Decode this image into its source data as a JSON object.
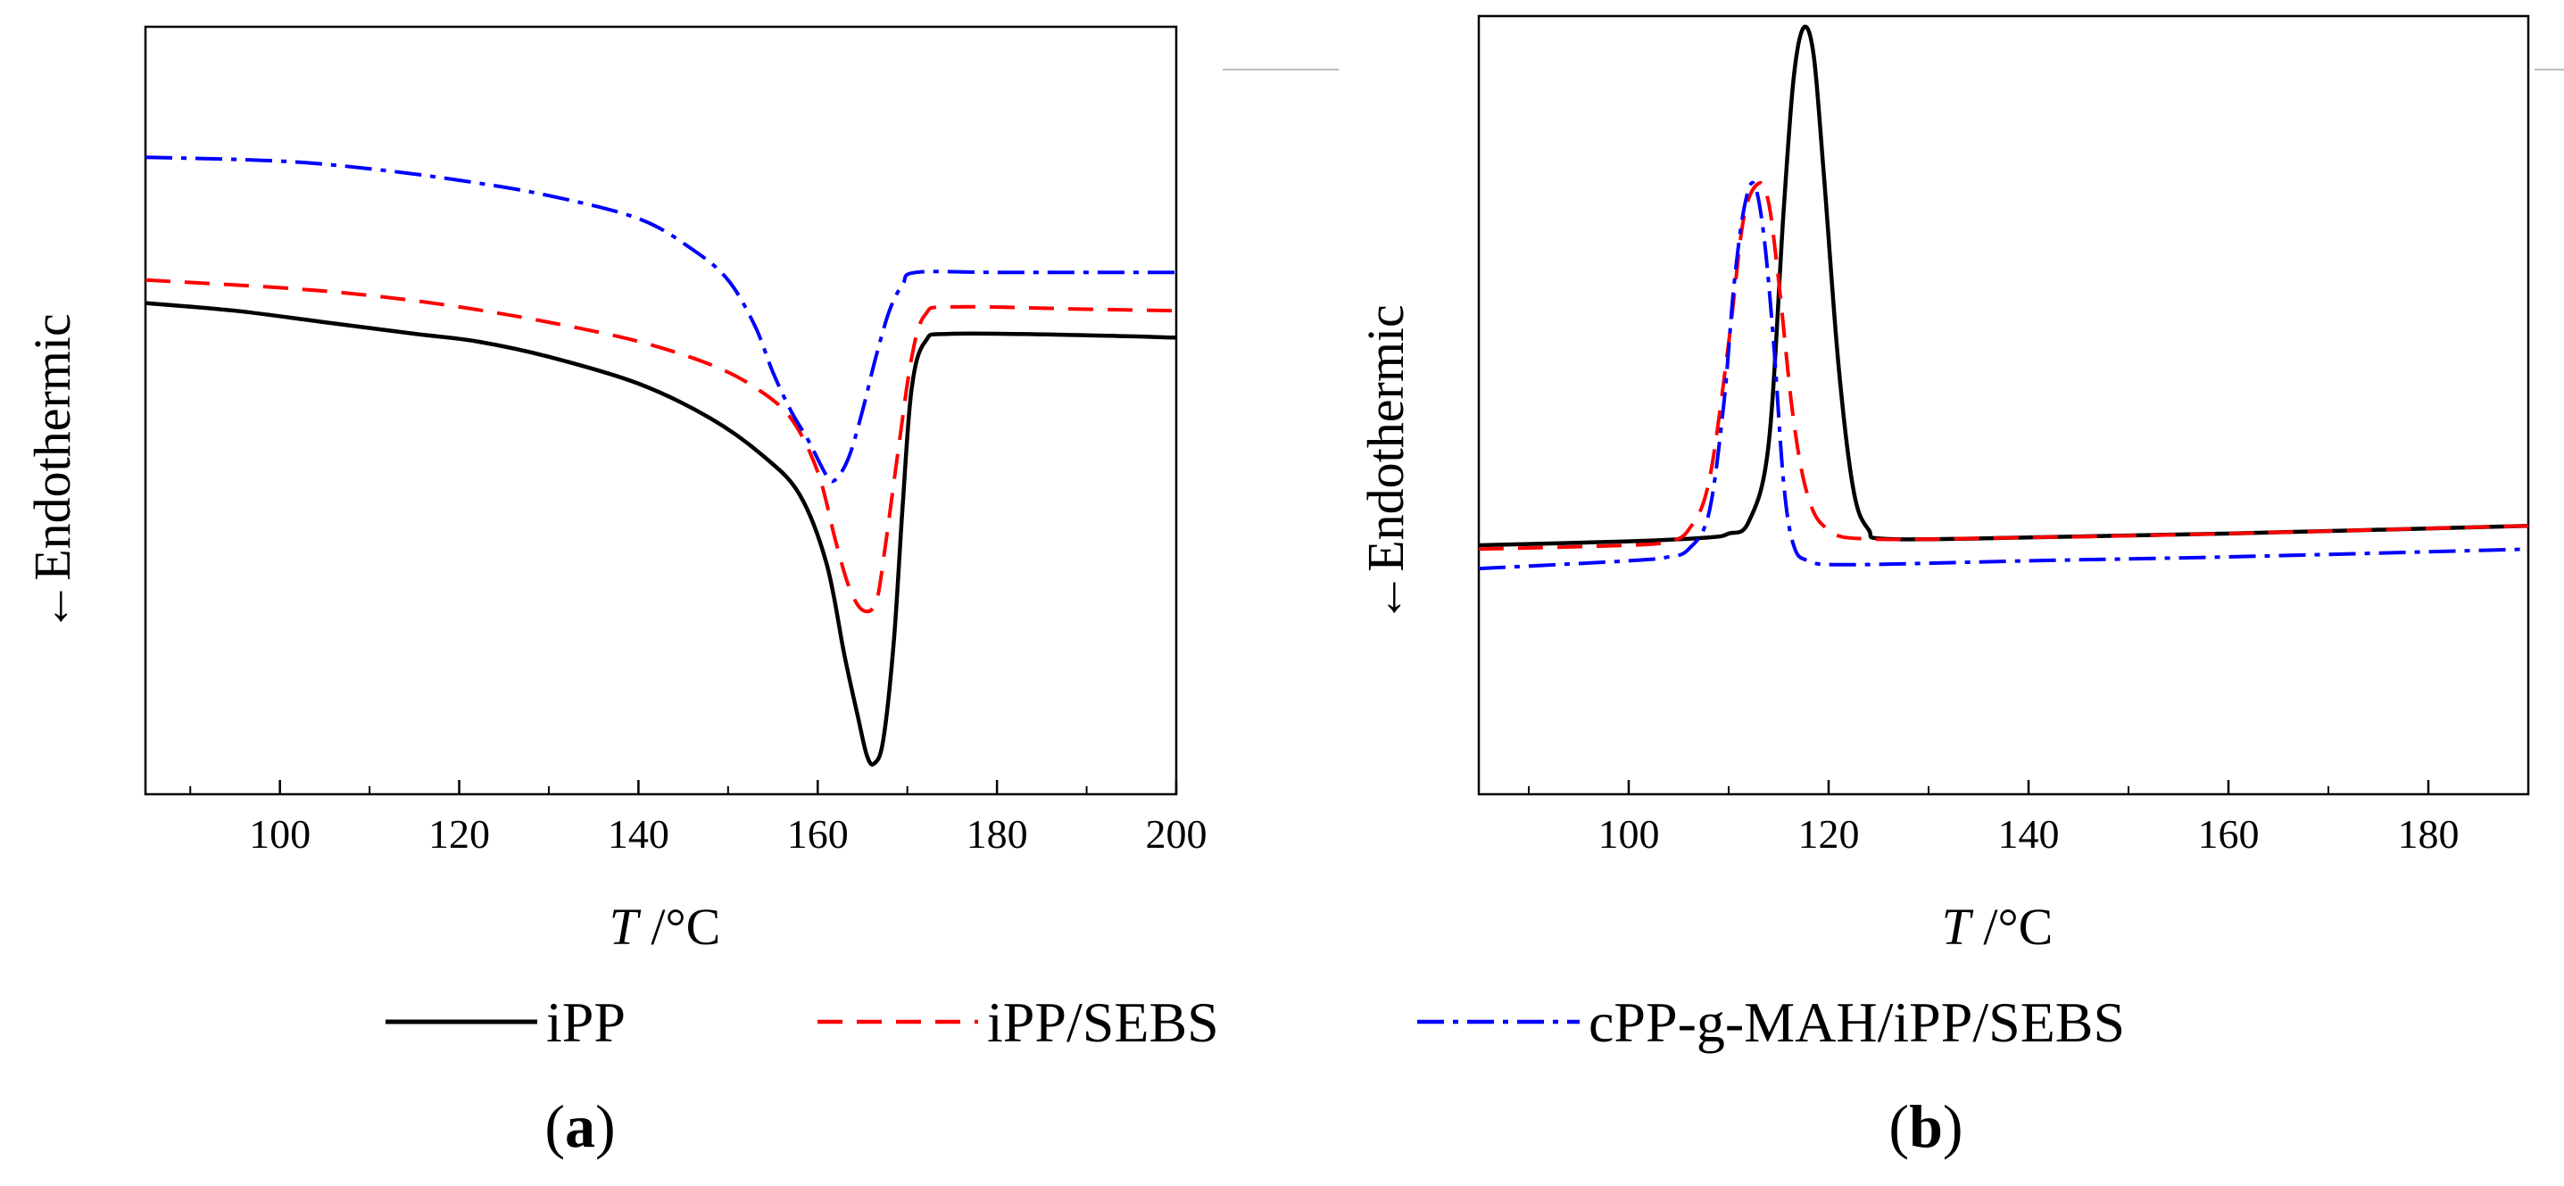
{
  "legend": {
    "entries": [
      {
        "label": "iPP",
        "color": "#000000",
        "dash": "solid"
      },
      {
        "label": "iPP/SEBS",
        "color": "#ff0000",
        "dash": "dashed"
      },
      {
        "label": "cPP-g-MAH/iPP/SEBS",
        "color": "#0000ff",
        "dash": "dash-dot"
      }
    ]
  },
  "chart_data": [
    {
      "panel": "a",
      "panel_label": {
        "open": "(",
        "letter": "a",
        "close": ")"
      },
      "type": "line",
      "xlabel": {
        "var": "T",
        "unit": " /°C"
      },
      "ylabel": "←Endothermic",
      "xlim": [
        85,
        200
      ],
      "ylim": [
        0,
        1
      ],
      "xticks": [
        100,
        120,
        140,
        160,
        180,
        200
      ],
      "y_tick_labels": false,
      "series": [
        {
          "name": "iPP",
          "color": "#000000",
          "dash": "solid",
          "points": [
            [
              85,
              0.64
            ],
            [
              95,
              0.63
            ],
            [
              105,
              0.615
            ],
            [
              115,
              0.6
            ],
            [
              122,
              0.59
            ],
            [
              130,
              0.57
            ],
            [
              140,
              0.535
            ],
            [
              148,
              0.49
            ],
            [
              154,
              0.44
            ],
            [
              158,
              0.39
            ],
            [
              161,
              0.3
            ],
            [
              163,
              0.18
            ],
            [
              164.5,
              0.1
            ],
            [
              165.5,
              0.05
            ],
            [
              166.3,
              0.04
            ],
            [
              167.3,
              0.07
            ],
            [
              168.5,
              0.2
            ],
            [
              169.5,
              0.38
            ],
            [
              170.5,
              0.53
            ],
            [
              172,
              0.59
            ],
            [
              175,
              0.6
            ],
            [
              190,
              0.598
            ],
            [
              200,
              0.595
            ]
          ]
        },
        {
          "name": "iPP/SEBS",
          "color": "#ff0000",
          "dash": "dashed",
          "points": [
            [
              85,
              0.67
            ],
            [
              100,
              0.66
            ],
            [
              110,
              0.65
            ],
            [
              120,
              0.635
            ],
            [
              130,
              0.615
            ],
            [
              140,
              0.59
            ],
            [
              148,
              0.56
            ],
            [
              153,
              0.53
            ],
            [
              157,
              0.49
            ],
            [
              160,
              0.42
            ],
            [
              162,
              0.33
            ],
            [
              163.5,
              0.27
            ],
            [
              165,
              0.24
            ],
            [
              166.5,
              0.25
            ],
            [
              167.5,
              0.32
            ],
            [
              169,
              0.45
            ],
            [
              170.5,
              0.57
            ],
            [
              172,
              0.625
            ],
            [
              175,
              0.635
            ],
            [
              190,
              0.632
            ],
            [
              200,
              0.63
            ]
          ]
        },
        {
          "name": "cPP-g-MAH/iPP/SEBS",
          "color": "#0000ff",
          "dash": "dash-dot",
          "points": [
            [
              85,
              0.83
            ],
            [
              100,
              0.825
            ],
            [
              110,
              0.815
            ],
            [
              120,
              0.8
            ],
            [
              130,
              0.78
            ],
            [
              140,
              0.75
            ],
            [
              146,
              0.71
            ],
            [
              150,
              0.67
            ],
            [
              153,
              0.61
            ],
            [
              155,
              0.55
            ],
            [
              157,
              0.5
            ],
            [
              159,
              0.46
            ],
            [
              161,
              0.415
            ],
            [
              162,
              0.41
            ],
            [
              163.5,
              0.44
            ],
            [
              165,
              0.5
            ],
            [
              166.5,
              0.57
            ],
            [
              168,
              0.63
            ],
            [
              169.5,
              0.665
            ],
            [
              171,
              0.68
            ],
            [
              180,
              0.68
            ],
            [
              200,
              0.68
            ]
          ]
        }
      ]
    },
    {
      "panel": "b",
      "panel_label": {
        "open": "(",
        "letter": "b",
        "close": ")"
      },
      "type": "line",
      "xlabel": {
        "var": "T",
        "unit": " /°C"
      },
      "ylabel": "←Endothermic",
      "xlim": [
        85,
        190
      ],
      "ylim": [
        0,
        1
      ],
      "xticks": [
        100,
        120,
        140,
        160,
        180
      ],
      "y_tick_labels": false,
      "series": [
        {
          "name": "iPP",
          "color": "#000000",
          "dash": "solid",
          "points": [
            [
              85,
              0.32
            ],
            [
              100,
              0.325
            ],
            [
              108,
              0.33
            ],
            [
              110,
              0.335
            ],
            [
              112,
              0.35
            ],
            [
              114,
              0.45
            ],
            [
              115.5,
              0.75
            ],
            [
              116.5,
              0.92
            ],
            [
              117.5,
              0.985
            ],
            [
              118.5,
              0.95
            ],
            [
              119.5,
              0.8
            ],
            [
              121,
              0.55
            ],
            [
              122.5,
              0.39
            ],
            [
              124,
              0.34
            ],
            [
              126,
              0.328
            ],
            [
              140,
              0.33
            ],
            [
              160,
              0.335
            ],
            [
              190,
              0.345
            ]
          ]
        },
        {
          "name": "iPP/SEBS",
          "color": "#ff0000",
          "dash": "dashed",
          "points": [
            [
              85,
              0.315
            ],
            [
              100,
              0.32
            ],
            [
              104,
              0.325
            ],
            [
              106,
              0.34
            ],
            [
              108,
              0.4
            ],
            [
              110,
              0.58
            ],
            [
              111.5,
              0.74
            ],
            [
              113,
              0.785
            ],
            [
              114,
              0.76
            ],
            [
              115,
              0.66
            ],
            [
              116.5,
              0.48
            ],
            [
              118,
              0.38
            ],
            [
              120,
              0.34
            ],
            [
              124,
              0.328
            ],
            [
              140,
              0.33
            ],
            [
              160,
              0.335
            ],
            [
              190,
              0.345
            ]
          ]
        },
        {
          "name": "cPP-g-MAH/iPP/SEBS",
          "color": "#0000ff",
          "dash": "dash-dot",
          "points": [
            [
              85,
              0.29
            ],
            [
              100,
              0.3
            ],
            [
              104,
              0.305
            ],
            [
              106,
              0.315
            ],
            [
              108,
              0.36
            ],
            [
              109.5,
              0.5
            ],
            [
              110.5,
              0.65
            ],
            [
              111.5,
              0.75
            ],
            [
              112.5,
              0.785
            ],
            [
              113.5,
              0.72
            ],
            [
              114.5,
              0.58
            ],
            [
              115.5,
              0.4
            ],
            [
              116.5,
              0.32
            ],
            [
              118,
              0.3
            ],
            [
              122,
              0.295
            ],
            [
              140,
              0.3
            ],
            [
              160,
              0.305
            ],
            [
              190,
              0.315
            ]
          ]
        }
      ]
    }
  ]
}
